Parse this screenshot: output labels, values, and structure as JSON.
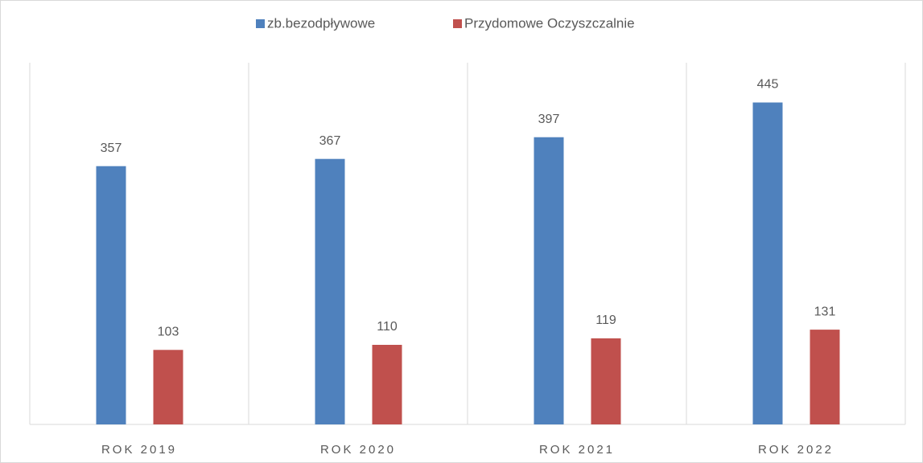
{
  "chart_data": {
    "type": "bar",
    "categories": [
      "ROK 2019",
      "ROK 2020",
      "ROK 2021",
      "ROK 2022"
    ],
    "series": [
      {
        "name": "zb.bezodpływowe",
        "color": "#4f81bd",
        "values": [
          357,
          367,
          397,
          445
        ]
      },
      {
        "name": "Przydomowe Oczyszczalnie",
        "color": "#c0504d",
        "values": [
          103,
          110,
          119,
          131
        ]
      }
    ],
    "ylim": [
      0,
      500
    ],
    "legend": "top"
  }
}
